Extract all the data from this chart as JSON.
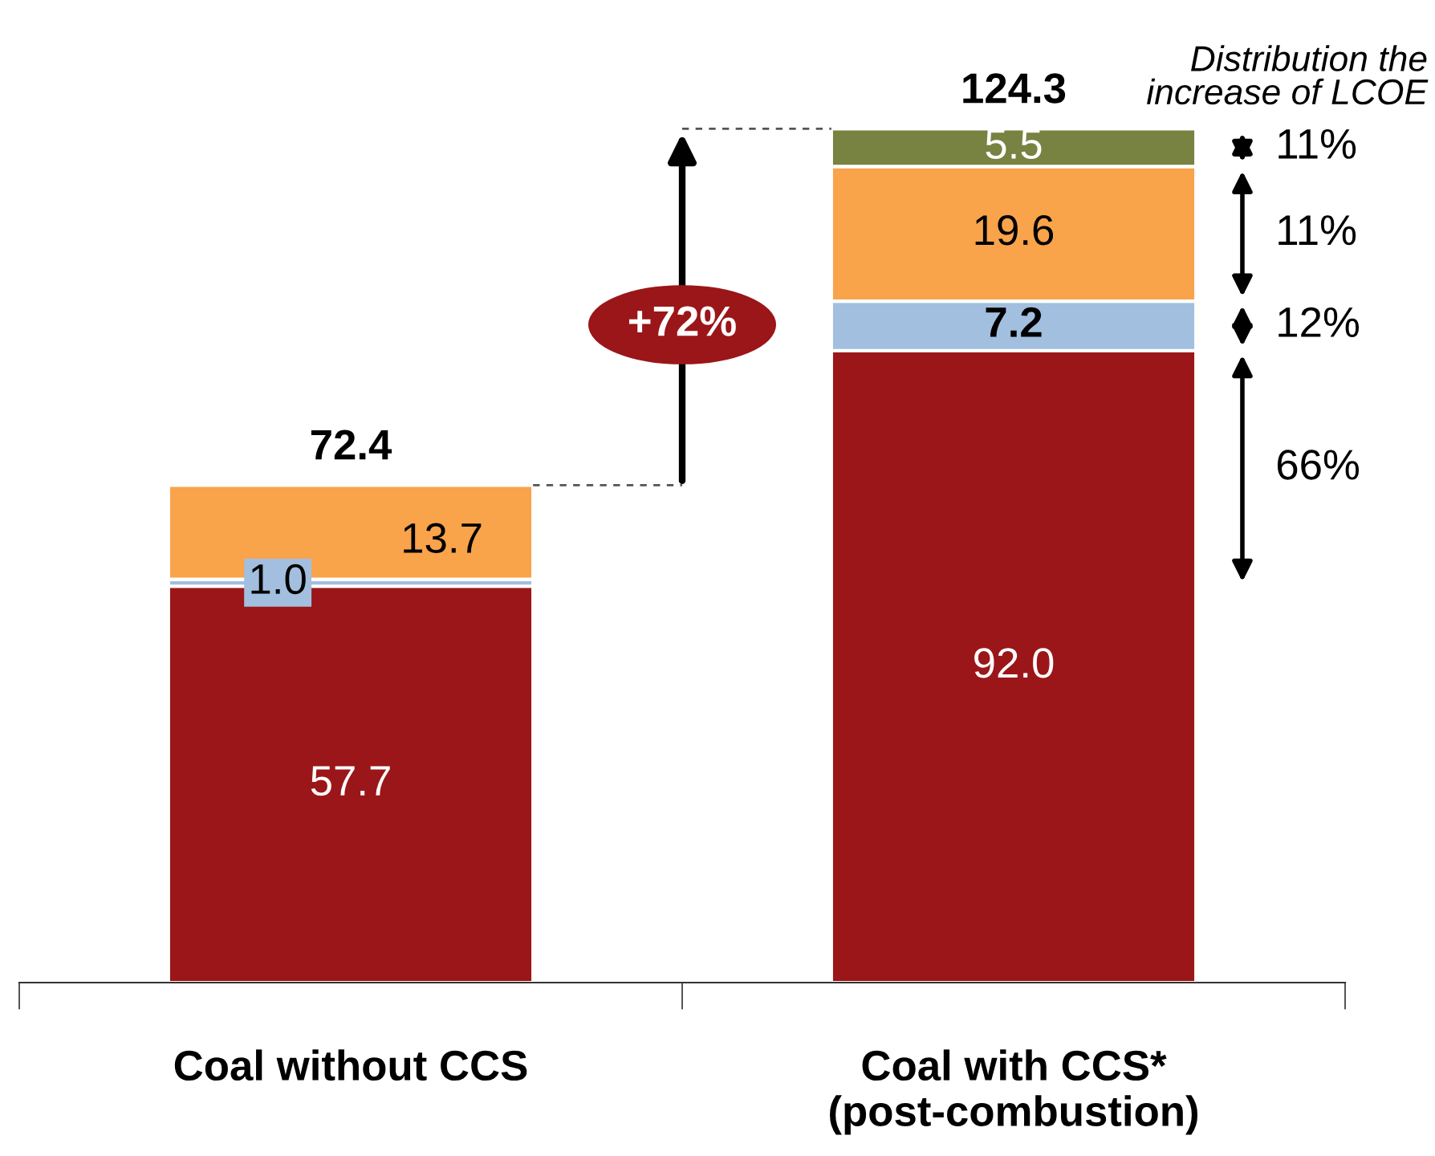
{
  "chart_data": {
    "type": "bar",
    "stacked": true,
    "grid": false,
    "legend": false,
    "categories": [
      "Coal without CCS",
      "Coal with CCS*\n(post-combustion)"
    ],
    "series": [
      {
        "color": "#9b1619",
        "values": [
          57.7,
          92.0
        ],
        "value_labels": [
          "57.7",
          "92.0"
        ]
      },
      {
        "color": "#a3bfdf",
        "values": [
          1.0,
          7.2
        ],
        "value_labels": [
          "1.0",
          "7.2"
        ]
      },
      {
        "color": "#f9a34b",
        "values": [
          13.7,
          19.6
        ],
        "value_labels": [
          "13.7",
          "19.6"
        ]
      },
      {
        "color": "#788241",
        "values": [
          null,
          5.5
        ],
        "value_labels": [
          null,
          "5.5"
        ]
      }
    ],
    "totals": [
      "72.4",
      "124.3"
    ],
    "annotations": [
      "+72%",
      "Distribution the\nincrease of LCOE",
      "11%",
      "11%",
      "12%",
      "66%"
    ]
  }
}
